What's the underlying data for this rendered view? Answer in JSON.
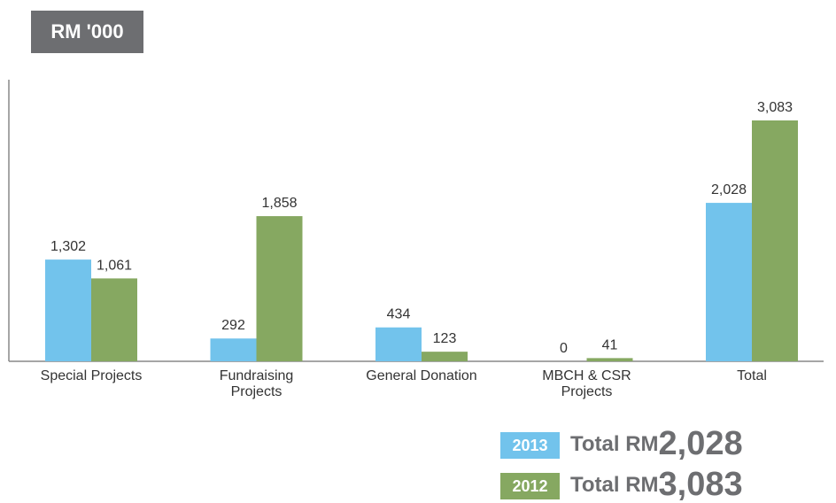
{
  "chart_data": {
    "type": "bar",
    "unit_label": "RM '000",
    "categories": [
      "Special Projects",
      "Fundraising Projects",
      "General Donation",
      "MBCH & CSR Projects",
      "Total"
    ],
    "series": [
      {
        "name": "2013",
        "color": "#72c3ec",
        "values": [
          1302,
          292,
          434,
          0,
          2028
        ],
        "value_labels": [
          "1,302",
          "292",
          "434",
          "0",
          "2,028"
        ]
      },
      {
        "name": "2012",
        "color": "#86a861",
        "values": [
          1061,
          1858,
          123,
          41,
          3083
        ],
        "value_labels": [
          "1,061",
          "1,858",
          "123",
          "41",
          "3,083"
        ]
      }
    ],
    "legend_total_label": "Total RM"
  }
}
